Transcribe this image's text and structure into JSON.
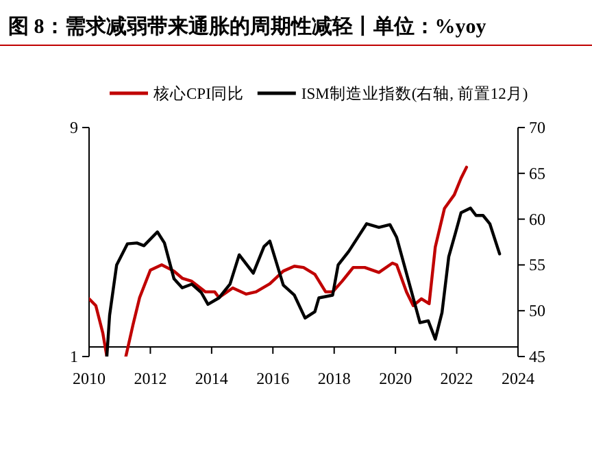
{
  "chart_data": {
    "type": "line",
    "title": "图 8：需求减弱带来通胀的周期性减轻丨单位：%yoy",
    "log": "y",
    "legend": "top",
    "grid": false,
    "marker": "none",
    "line_style": "solid",
    "xlim": [
      2010,
      2024
    ],
    "xticks": [
      2010,
      2012,
      2014,
      2016,
      2018,
      2020,
      2022,
      2024
    ],
    "ylim": [
      1,
      9
    ],
    "yticks": [
      1,
      9
    ],
    "y2lim": [
      45,
      70
    ],
    "y2ticks": [
      45,
      50,
      55,
      60,
      65,
      70
    ],
    "series": [
      {
        "name": "核心CPI同比",
        "color": "#c00000",
        "x": [
          2010.0,
          2010.22,
          2010.45,
          2010.58,
          2010.9,
          2011.2,
          2011.43,
          2011.65,
          2012.0,
          2012.37,
          2012.77,
          2013.04,
          2013.35,
          2013.8,
          2014.1,
          2014.24,
          2014.69,
          2015.13,
          2015.45,
          2015.9,
          2016.34,
          2016.7,
          2017.0,
          2017.37,
          2017.72,
          2017.95,
          2018.26,
          2018.62,
          2019.0,
          2019.46,
          2019.9,
          2020.04,
          2020.36,
          2020.58,
          2020.85,
          2021.1,
          2021.3,
          2021.6,
          2021.92,
          2022.14,
          2022.32
        ],
        "values": [
          1.74,
          1.63,
          1.25,
          1.0,
          null,
          1.0,
          1.35,
          1.76,
          2.29,
          2.41,
          2.27,
          2.12,
          2.06,
          1.86,
          1.86,
          1.76,
          1.93,
          1.82,
          1.86,
          2.01,
          2.27,
          2.38,
          2.35,
          2.2,
          1.86,
          1.86,
          2.06,
          2.35,
          2.35,
          2.24,
          2.45,
          2.41,
          1.86,
          1.63,
          1.74,
          1.66,
          2.86,
          4.14,
          4.72,
          5.53,
          6.15
        ]
      },
      {
        "name": "ISM制造业指数(右轴, 前置12月)",
        "color": "#000000",
        "axis": "y2",
        "x": [
          2010.58,
          2010.67,
          2010.9,
          2011.25,
          2011.56,
          2011.79,
          2012.23,
          2012.46,
          2012.77,
          2013.04,
          2013.35,
          2013.66,
          2013.88,
          2014.24,
          2014.6,
          2014.9,
          2015.36,
          2015.71,
          2015.9,
          2016.34,
          2016.7,
          2017.05,
          2017.37,
          2017.5,
          2017.95,
          2018.13,
          2018.48,
          2019.06,
          2019.46,
          2019.82,
          2020.04,
          2020.49,
          2020.8,
          2021.07,
          2021.3,
          2021.52,
          2021.74,
          2021.96,
          2022.14,
          2022.45,
          2022.63,
          2022.86,
          2023.08,
          2023.4
        ],
        "values": [
          45.0,
          49.5,
          55.0,
          57.3,
          57.4,
          57.1,
          58.6,
          57.4,
          53.5,
          52.5,
          52.9,
          52.0,
          50.7,
          51.4,
          52.9,
          56.1,
          54.1,
          57.0,
          57.6,
          52.8,
          51.7,
          49.2,
          49.9,
          51.4,
          51.7,
          55.0,
          56.5,
          59.5,
          59.1,
          59.4,
          58.0,
          52.5,
          48.7,
          48.9,
          46.9,
          49.8,
          55.9,
          58.5,
          60.7,
          61.2,
          60.4,
          60.4,
          59.5,
          56.2
        ]
      }
    ]
  }
}
